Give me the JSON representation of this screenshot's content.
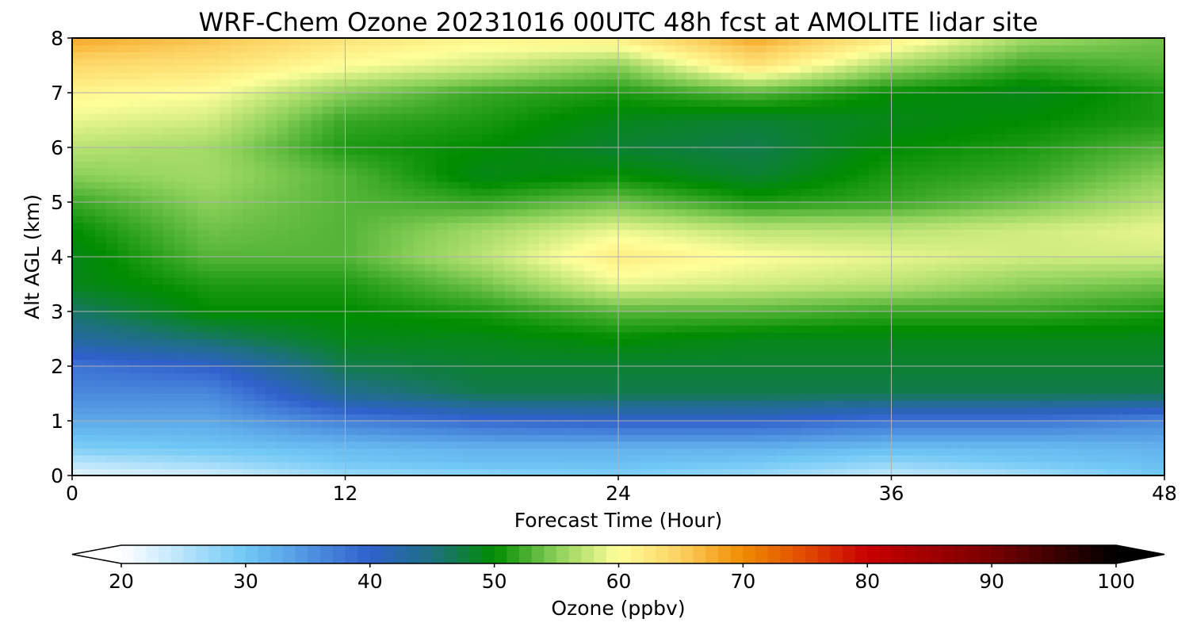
{
  "chart_data": {
    "type": "heatmap",
    "title": "WRF-Chem Ozone  20231016 00UTC 48h fcst at AMOLITE lidar site",
    "xlabel": "Forecast Time (Hour)",
    "ylabel": "Alt AGL (km)",
    "xlim": [
      0,
      48
    ],
    "ylim": [
      0,
      8
    ],
    "xticks": [
      0,
      12,
      24,
      36,
      48
    ],
    "yticks": [
      0,
      1,
      2,
      3,
      4,
      5,
      6,
      7,
      8
    ],
    "grid": true,
    "times_hour": [
      0,
      6,
      12,
      18,
      24,
      30,
      36,
      42,
      48
    ],
    "altitudes_km": [
      0,
      0.25,
      0.5,
      1,
      1.5,
      2,
      2.5,
      3,
      3.5,
      4,
      4.5,
      5,
      5.5,
      6,
      6.5,
      7,
      7.5,
      8
    ],
    "ozone_ppbv": [
      [
        22,
        23,
        27,
        28,
        29,
        27,
        24,
        26,
        30
      ],
      [
        25,
        27,
        30,
        31,
        31,
        30,
        28,
        30,
        31
      ],
      [
        29,
        30,
        31,
        32,
        32,
        32,
        31,
        31,
        32
      ],
      [
        33,
        33,
        37,
        39,
        40,
        40,
        38,
        38,
        36
      ],
      [
        36,
        36,
        44,
        47,
        47,
        47,
        47,
        47,
        47
      ],
      [
        38,
        40,
        47,
        48,
        48,
        48,
        48,
        48,
        48
      ],
      [
        43,
        46,
        49,
        49,
        50,
        49,
        49,
        49,
        49
      ],
      [
        46,
        50,
        50,
        51,
        53,
        53,
        52,
        52,
        51
      ],
      [
        49,
        51,
        51,
        54,
        59,
        58,
        57,
        55,
        54
      ],
      [
        49,
        53,
        53,
        57,
        62,
        60,
        59,
        58,
        58
      ],
      [
        50,
        54,
        53,
        56,
        59,
        57,
        57,
        58,
        59
      ],
      [
        52,
        55,
        53,
        52,
        54,
        51,
        52,
        54,
        57
      ],
      [
        55,
        56,
        53,
        49,
        50,
        48,
        51,
        52,
        55
      ],
      [
        57,
        56,
        51,
        50,
        48,
        47,
        50,
        51,
        53
      ],
      [
        59,
        58,
        52,
        51,
        49,
        48,
        49,
        50,
        51
      ],
      [
        61,
        60,
        55,
        52,
        51,
        53,
        50,
        49,
        51
      ],
      [
        64,
        63,
        60,
        58,
        55,
        63,
        56,
        52,
        53
      ],
      [
        68,
        66,
        63,
        61,
        62,
        68,
        62,
        56,
        54
      ]
    ],
    "colorbar": {
      "label": "Ozone  (ppbv)",
      "min": 20,
      "max": 100,
      "ticks": [
        20,
        30,
        40,
        50,
        60,
        70,
        80,
        90,
        100
      ],
      "extend": "both",
      "location": "bottom",
      "colors": [
        {
          "v": 20,
          "c": "#ffffff"
        },
        {
          "v": 30,
          "c": "#70c8f5"
        },
        {
          "v": 40,
          "c": "#3060cc"
        },
        {
          "v": 45,
          "c": "#1e7080"
        },
        {
          "v": 50,
          "c": "#008c00"
        },
        {
          "v": 55,
          "c": "#8cd05a"
        },
        {
          "v": 60,
          "c": "#ffff9a"
        },
        {
          "v": 65,
          "c": "#fcd060"
        },
        {
          "v": 70,
          "c": "#f08c00"
        },
        {
          "v": 75,
          "c": "#e04a00"
        },
        {
          "v": 80,
          "c": "#c80000"
        },
        {
          "v": 90,
          "c": "#780000"
        },
        {
          "v": 100,
          "c": "#000000"
        }
      ]
    }
  }
}
